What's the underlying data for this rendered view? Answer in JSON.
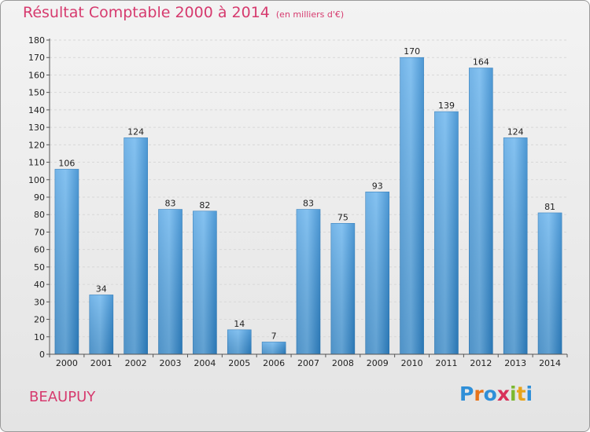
{
  "title": "Résultat Comptable 2000 à 2014",
  "subtitle": "(en milliers d'€)",
  "place": "BEAUPUY",
  "brand": {
    "letters": [
      "P",
      "r",
      "o",
      "x",
      "i",
      "t",
      "i"
    ],
    "colors": [
      "#2f8fd8",
      "#e8731a",
      "#2f8fd8",
      "#d8305a",
      "#7cb82f",
      "#e8a41a",
      "#2f8fd8"
    ]
  },
  "colors": {
    "accent": "#d63a6e",
    "bar": "#3a92d6",
    "bar_light": "#6bb4ec"
  },
  "chart_data": {
    "type": "bar",
    "categories": [
      "2000",
      "2001",
      "2002",
      "2003",
      "2004",
      "2005",
      "2006",
      "2007",
      "2008",
      "2009",
      "2010",
      "2011",
      "2012",
      "2013",
      "2014"
    ],
    "values": [
      106,
      34,
      124,
      83,
      82,
      14,
      7,
      83,
      75,
      93,
      170,
      139,
      164,
      124,
      81
    ],
    "ylim": [
      0,
      180
    ],
    "yticks": [
      0,
      10,
      20,
      30,
      40,
      50,
      60,
      70,
      80,
      90,
      100,
      110,
      120,
      130,
      140,
      150,
      160,
      170,
      180
    ],
    "grid": true
  }
}
